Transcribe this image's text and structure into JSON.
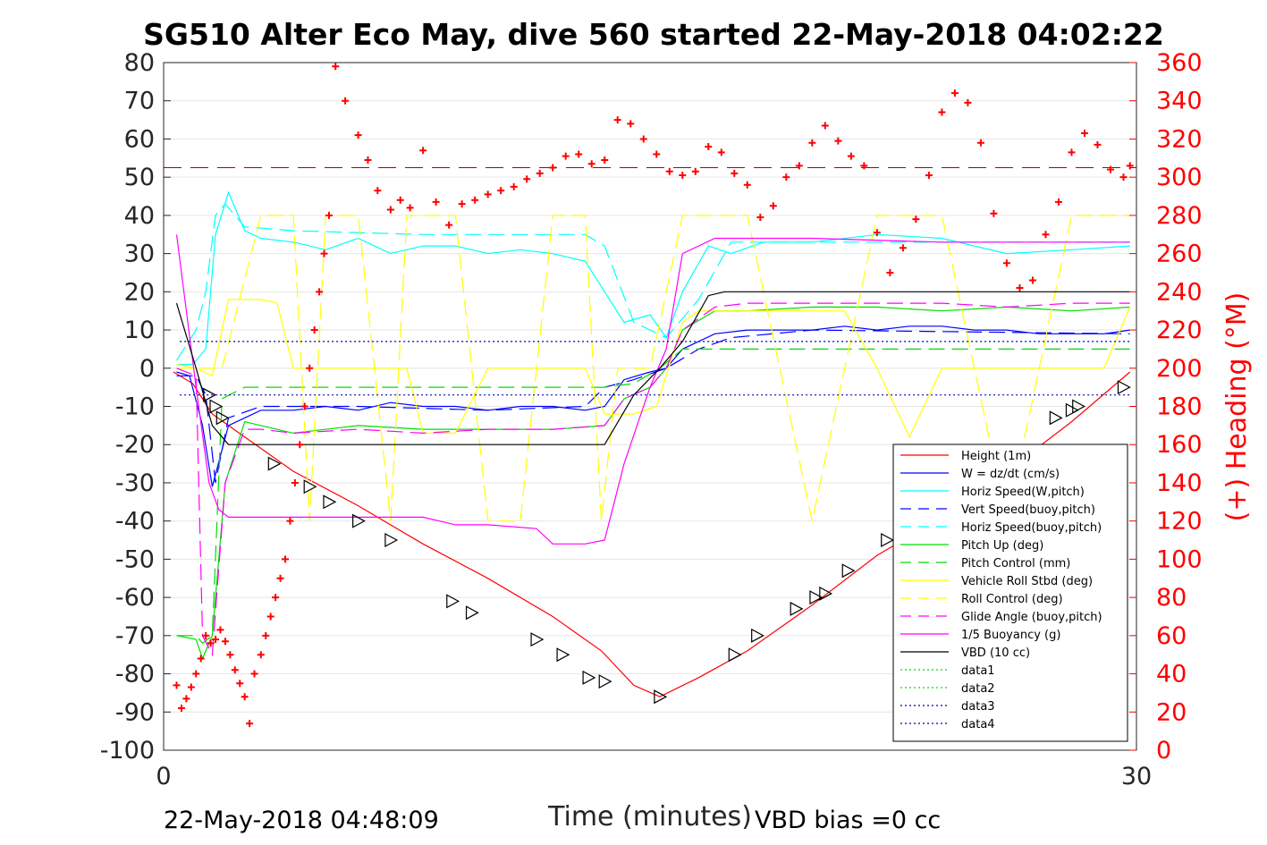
{
  "chart_data": {
    "type": "line",
    "title": "SG510 Alter Eco May, dive 560 started 22-May-2018 04:02:22",
    "xlabel": "Time (minutes)",
    "ylabel_right": "(+) Heading (°M)",
    "footer_left": "22-May-2018 04:48:09",
    "footer_right": "VBD bias =0 cc",
    "xlim": [
      0,
      30
    ],
    "ylim": [
      -100,
      80
    ],
    "ylim_right": [
      0,
      360
    ],
    "x_ticks": [
      "0",
      "30"
    ],
    "y_ticks": [
      "80",
      "70",
      "60",
      "50",
      "40",
      "30",
      "20",
      "10",
      "0",
      "-10",
      "-20",
      "-30",
      "-40",
      "-50",
      "-60",
      "-70",
      "-80",
      "-90",
      "-100"
    ],
    "y_ticks_right": [
      "360",
      "340",
      "320",
      "300",
      "280",
      "260",
      "240",
      "220",
      "200",
      "180",
      "160",
      "140",
      "120",
      "100",
      "80",
      "60",
      "40",
      "20",
      "0"
    ],
    "grid": true,
    "legend_position": "bottom-right",
    "reference_lines": {
      "heading_mean_right": 305,
      "data3_upper": 7,
      "data3_lower": -7
    },
    "series": [
      {
        "name": "Height (1m)",
        "color": "#ff0000",
        "dash": "solid",
        "x": [
          0.3,
          0.9,
          1.5,
          2.5,
          4,
          6,
          8,
          10,
          12,
          13.5,
          14.5,
          15.3,
          16.5,
          18,
          20,
          22,
          24,
          26,
          28,
          29.8
        ],
        "y": [
          -1,
          -4,
          -12,
          -18,
          -27,
          -36,
          -46,
          -55,
          -65,
          -74,
          -83,
          -86,
          -81,
          -74,
          -62,
          -49,
          -39,
          -27,
          -14,
          -1
        ]
      },
      {
        "name": "W = dz/dt (cm/s)",
        "color": "#0000ff",
        "dash": "solid",
        "x": [
          0.4,
          0.8,
          1.2,
          1.5,
          2,
          3,
          4,
          5,
          6,
          7,
          8,
          9,
          10,
          11,
          12,
          13,
          13.6,
          14.2,
          15,
          15.5,
          16,
          17,
          18,
          19,
          20,
          21,
          22,
          23,
          24,
          25,
          26,
          27,
          28,
          29,
          29.8
        ],
        "y": [
          -1,
          -2,
          -15,
          -31,
          -15,
          -11,
          -11,
          -10,
          -11,
          -9,
          -10,
          -10,
          -11,
          -10,
          -10,
          -11,
          -10,
          -3,
          -1,
          0,
          5,
          9,
          10,
          10,
          10,
          11,
          10,
          11,
          11,
          10,
          10,
          9,
          9,
          9,
          10
        ]
      },
      {
        "name": "Horiz Speed(W,pitch)",
        "color": "#00ffff",
        "dash": "solid",
        "x": [
          0.4,
          0.9,
          1.3,
          1.6,
          2,
          2.5,
          3,
          4,
          5,
          6,
          7,
          8,
          9,
          10,
          11,
          12,
          13,
          13.6,
          14.2,
          15,
          15.5,
          16,
          16.8,
          17.5,
          18.5,
          20,
          22,
          24,
          26,
          28,
          29.8
        ],
        "y": [
          1,
          1,
          5,
          35,
          46,
          36,
          34,
          33,
          31,
          34,
          30,
          32,
          32,
          30,
          31,
          30,
          28,
          20,
          12,
          14,
          8,
          20,
          32,
          30,
          33,
          33,
          35,
          34,
          30,
          31,
          32
        ]
      },
      {
        "name": "Vert Speed(buoy,pitch)",
        "color": "#0000ff",
        "dash": "dashed",
        "x": [
          0.4,
          1,
          1.3,
          1.6,
          2,
          3,
          6,
          10,
          13,
          13.6,
          14.5,
          15.5,
          16.5,
          17.5,
          20,
          29.8
        ],
        "y": [
          -2,
          -2,
          -7,
          -30,
          -13,
          -10,
          -10,
          -11,
          -10,
          -5,
          -3,
          0,
          5,
          8,
          10,
          9
        ]
      },
      {
        "name": "Horiz Speed(buoy,pitch)",
        "color": "#00ffff",
        "dash": "dashed",
        "x": [
          0.4,
          1,
          1.3,
          1.6,
          1.9,
          2.5,
          4,
          8,
          12,
          13,
          13.6,
          14.5,
          15.5,
          16.5,
          17.5,
          20,
          29.8
        ],
        "y": [
          2,
          10,
          20,
          40,
          43,
          37,
          36,
          35,
          35,
          35,
          32,
          12,
          8,
          18,
          33,
          33,
          33
        ]
      },
      {
        "name": "Pitch Up (deg)",
        "color": "#00dd00",
        "dash": "solid",
        "x": [
          0.4,
          1,
          1.2,
          1.5,
          1.9,
          2.5,
          3,
          4,
          6,
          8,
          10,
          12,
          13.6,
          14.2,
          15,
          15.5,
          16,
          17,
          18,
          20,
          22,
          24,
          26,
          28,
          29.8
        ],
        "y": [
          -70,
          -71,
          -76,
          -70,
          -30,
          -14,
          -15,
          -17,
          -15,
          -16,
          -16,
          -16,
          -15,
          -8,
          -5,
          0,
          10,
          15,
          15,
          16,
          16,
          15,
          16,
          15,
          16
        ]
      },
      {
        "name": "Pitch Control (mm)",
        "color": "#00dd00",
        "dash": "dashed",
        "x": [
          0.4,
          1,
          1.2,
          1.5,
          1.8,
          2.5,
          6,
          10,
          13.6,
          14.5,
          15.3,
          16,
          17,
          20,
          25,
          29.8
        ],
        "y": [
          -70,
          -70,
          -72,
          -70,
          -8,
          -5,
          -5,
          -5,
          -5,
          -4,
          0,
          5,
          5,
          5,
          5,
          5
        ]
      },
      {
        "name": "Vehicle Roll Stbd (deg)",
        "color": "#ffff00",
        "dash": "solid",
        "x": [
          0.4,
          1,
          1.5,
          2,
          3,
          3.5,
          4,
          4.2,
          4.5,
          5,
          6,
          7,
          7.5,
          8,
          9,
          10,
          12,
          13,
          13.6,
          14.5,
          15.2,
          16,
          16.5,
          17,
          18,
          19,
          20,
          21,
          22,
          23,
          24,
          25,
          26,
          27,
          28,
          29,
          29.8
        ],
        "y": [
          1,
          0,
          -2,
          18,
          18,
          17,
          0,
          0,
          0,
          0,
          0,
          0,
          0,
          -17,
          -17,
          0,
          0,
          0,
          -12,
          -12,
          -10,
          12,
          15,
          15,
          15,
          15,
          15,
          15,
          0,
          -18,
          0,
          0,
          0,
          0,
          0,
          0,
          16
        ]
      },
      {
        "name": "Roll Control (deg)",
        "color": "#ffff00",
        "dash": "dashed",
        "x": [
          0.4,
          1.8,
          3,
          4,
          4.5,
          5,
          6,
          7,
          7.5,
          8,
          9,
          10,
          11,
          12,
          13,
          13.5,
          14,
          15,
          16,
          18,
          20,
          22,
          24,
          26,
          28,
          29.8
        ],
        "y": [
          0,
          0,
          40,
          40,
          -40,
          40,
          40,
          -40,
          40,
          40,
          40,
          -40,
          -40,
          40,
          40,
          -40,
          0,
          0,
          40,
          40,
          -40,
          40,
          40,
          -40,
          40,
          40
        ]
      },
      {
        "name": "Glide Angle (buoy,pitch)",
        "color": "#ff00ff",
        "dash": "dashed",
        "x": [
          0.4,
          1,
          1.2,
          1.5,
          1.9,
          2.5,
          3,
          4,
          6,
          8,
          10,
          12,
          13.6,
          14.2,
          15,
          15.5,
          16,
          17,
          18,
          20,
          22,
          24,
          26,
          28,
          29.8
        ],
        "y": [
          0,
          -2,
          -70,
          -75,
          -30,
          -16,
          -16,
          -17,
          -16,
          -17,
          -16,
          -16,
          -15,
          -8,
          -5,
          0,
          10,
          16,
          17,
          17,
          17,
          17,
          16,
          17,
          17
        ]
      },
      {
        "name": "1/5 Buoyancy (g)",
        "color": "#ff00ff",
        "dash": "solid",
        "x": [
          0.4,
          1,
          1.4,
          1.7,
          2,
          3,
          5,
          8,
          9,
          10,
          11.5,
          12,
          12.5,
          13,
          13.6,
          14.2,
          15,
          15.5,
          16,
          17,
          20,
          24,
          29.8
        ],
        "y": [
          35,
          -5,
          -30,
          -37,
          -39,
          -39,
          -39,
          -39,
          -41,
          -41,
          -42,
          -46,
          -46,
          -46,
          -45,
          -25,
          -5,
          5,
          30,
          34,
          34,
          33,
          33
        ]
      },
      {
        "name": "VBD (10 cc)",
        "color": "#000000",
        "dash": "solid",
        "x": [
          0.4,
          1,
          1.5,
          2,
          2.5,
          13.6,
          14.5,
          15.3,
          16,
          16.8,
          17.3,
          20,
          25,
          29.8
        ],
        "y": [
          17,
          0,
          -15,
          -20,
          -20,
          -20,
          -7,
          0,
          7,
          19,
          20,
          20,
          20,
          20
        ]
      },
      {
        "name": "data1",
        "color": "#00dd00",
        "dash": "dotted",
        "x": [],
        "y": []
      },
      {
        "name": "data2",
        "color": "#00dd00",
        "dash": "dotted",
        "x": [],
        "y": []
      },
      {
        "name": "data3",
        "color": "#0000aa",
        "dash": "dotted",
        "x": [
          0.5,
          29.8
        ],
        "y": [
          7,
          7
        ]
      },
      {
        "name": "data4",
        "color": "#0000aa",
        "dash": "dotted",
        "x": [
          0.5,
          29.8
        ],
        "y": [
          -7,
          -7
        ]
      }
    ],
    "heading_points": {
      "axis": "right",
      "x": [
        0.4,
        0.55,
        0.7,
        0.85,
        1,
        1.15,
        1.3,
        1.45,
        1.6,
        1.75,
        1.9,
        2.05,
        2.2,
        2.35,
        2.5,
        2.65,
        2.8,
        3,
        3.15,
        3.3,
        3.45,
        3.6,
        3.75,
        3.9,
        4.05,
        4.2,
        4.35,
        4.5,
        4.65,
        4.8,
        4.95,
        5.1,
        5.3,
        5.6,
        6,
        6.3,
        6.6,
        7,
        7.3,
        7.6,
        8,
        8.4,
        8.8,
        9.2,
        9.6,
        10,
        10.4,
        10.8,
        11.2,
        11.6,
        12,
        12.4,
        12.8,
        13.2,
        13.6,
        14,
        14.4,
        14.8,
        15.2,
        15.6,
        16,
        16.4,
        16.8,
        17.2,
        17.6,
        18,
        18.4,
        18.8,
        19.2,
        19.6,
        20,
        20.4,
        20.8,
        21.2,
        21.6,
        22,
        22.4,
        22.8,
        23.2,
        23.6,
        24,
        24.4,
        24.8,
        25.2,
        25.6,
        26,
        26.4,
        26.8,
        27.2,
        27.6,
        28,
        28.4,
        28.8,
        29.2,
        29.6,
        29.8
      ],
      "y": [
        34,
        22,
        27,
        33,
        40,
        48,
        60,
        56,
        58,
        63,
        57,
        50,
        42,
        35,
        28,
        14,
        40,
        50,
        60,
        70,
        80,
        90,
        100,
        120,
        140,
        160,
        180,
        200,
        220,
        240,
        260,
        280,
        358,
        340,
        322,
        309,
        293,
        283,
        288,
        284,
        314,
        287,
        275,
        286,
        288,
        291,
        293,
        295,
        299,
        302,
        305,
        311,
        312,
        307,
        309,
        330,
        328,
        320,
        312,
        303,
        301,
        303,
        316,
        313,
        302,
        296,
        279,
        285,
        300,
        306,
        318,
        327,
        319,
        311,
        306,
        271,
        250,
        263,
        278,
        301,
        334,
        344,
        339,
        318,
        281,
        255,
        242,
        246,
        270,
        287,
        313,
        323,
        317,
        304,
        300,
        306
      ]
    },
    "markers": {
      "shape": "triangle",
      "x": [
        1.4,
        1.6,
        1.8,
        3.4,
        4.5,
        5.1,
        6,
        7,
        8.9,
        9.5,
        11.5,
        12.3,
        13.1,
        13.6,
        15.3,
        17.6,
        18.3,
        19.5,
        20.1,
        20.4,
        21.1,
        22.3,
        23.3,
        23.7,
        27.5,
        28,
        28.2,
        29.6
      ],
      "y": [
        -7,
        -10,
        -13,
        -25,
        -31,
        -35,
        -40,
        -45,
        -61,
        -64,
        -71,
        -75,
        -81,
        -82,
        -86,
        -75,
        -70,
        -63,
        -60,
        -59,
        -53,
        -45,
        -40,
        -37,
        -13,
        -11,
        -10,
        -5
      ]
    }
  }
}
